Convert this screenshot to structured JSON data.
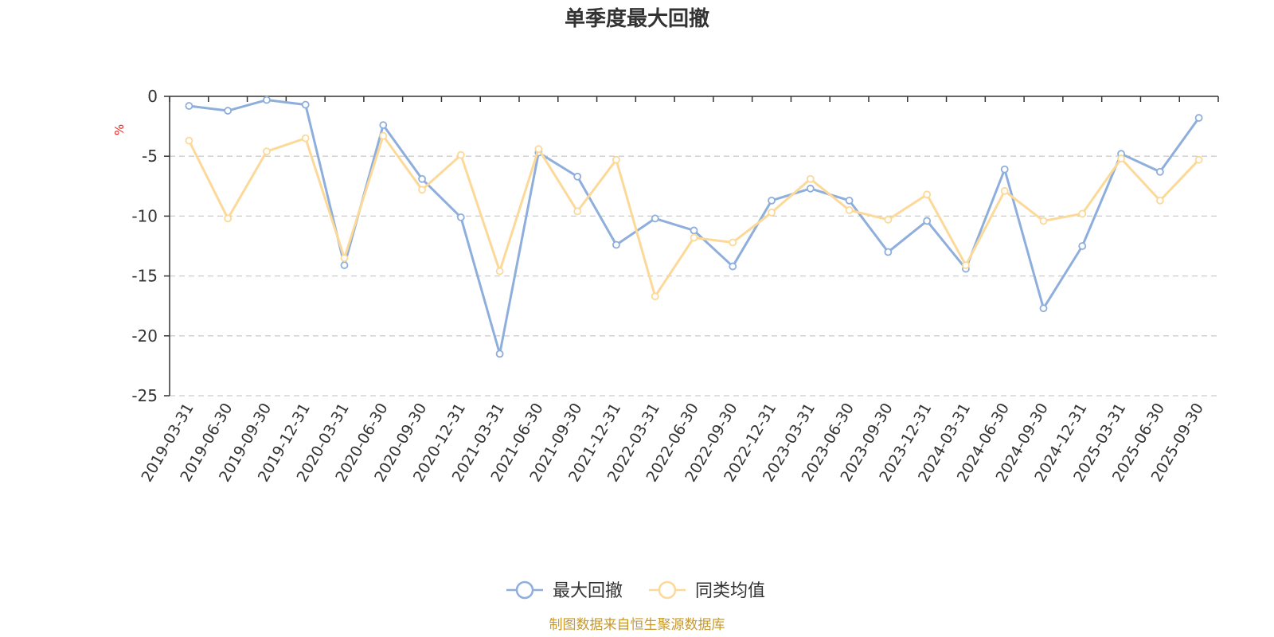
{
  "colors": {
    "series1": "#8eaedc",
    "series2": "#fcd999",
    "unit": "#e8211c",
    "source": "#c79a2e",
    "grid": "#cccccc",
    "axis": "#333333"
  },
  "chart_data": {
    "type": "line",
    "title": "单季度最大回撤",
    "ylabel": "%",
    "ylim": [
      -25,
      0
    ],
    "yticks": [
      0,
      -5,
      -10,
      -15,
      -20,
      -25
    ],
    "ytick_labels": [
      "0",
      "-5",
      "-10",
      "-15",
      "-20",
      "-25"
    ],
    "grid": "horizontal dashed",
    "legend_position": "bottom-center",
    "categories": [
      "2019-03-31",
      "2019-06-30",
      "2019-09-30",
      "2019-12-31",
      "2020-03-31",
      "2020-06-30",
      "2020-09-30",
      "2020-12-31",
      "2021-03-31",
      "2021-06-30",
      "2021-09-30",
      "2021-12-31",
      "2022-03-31",
      "2022-06-30",
      "2022-09-30",
      "2022-12-31",
      "2023-03-31",
      "2023-06-30",
      "2023-09-30",
      "2023-12-31",
      "2024-03-31",
      "2024-06-30",
      "2024-09-30",
      "2024-12-31",
      "2025-03-31",
      "2025-06-30",
      "2025-09-30"
    ],
    "series": [
      {
        "name": "最大回撤",
        "values": [
          -0.8,
          -1.2,
          -0.3,
          -0.7,
          -14.1,
          -2.4,
          -6.9,
          -10.1,
          -21.5,
          -4.7,
          -6.7,
          -12.4,
          -10.2,
          -11.2,
          -14.2,
          -8.7,
          -7.7,
          -8.7,
          -13.0,
          -10.4,
          -14.4,
          -6.1,
          -17.7,
          -12.5,
          -4.8,
          -6.3,
          -1.8
        ]
      },
      {
        "name": "同类均值",
        "values": [
          -3.7,
          -10.2,
          -4.6,
          -3.5,
          -13.5,
          -3.3,
          -7.8,
          -4.9,
          -14.6,
          -4.4,
          -9.6,
          -5.3,
          -16.7,
          -11.8,
          -12.2,
          -9.7,
          -6.9,
          -9.5,
          -10.3,
          -8.2,
          -14.1,
          -7.9,
          -10.4,
          -9.8,
          -5.2,
          -8.7,
          -5.3
        ]
      }
    ]
  },
  "footer": {
    "source": "制图数据来自恒生聚源数据库"
  }
}
